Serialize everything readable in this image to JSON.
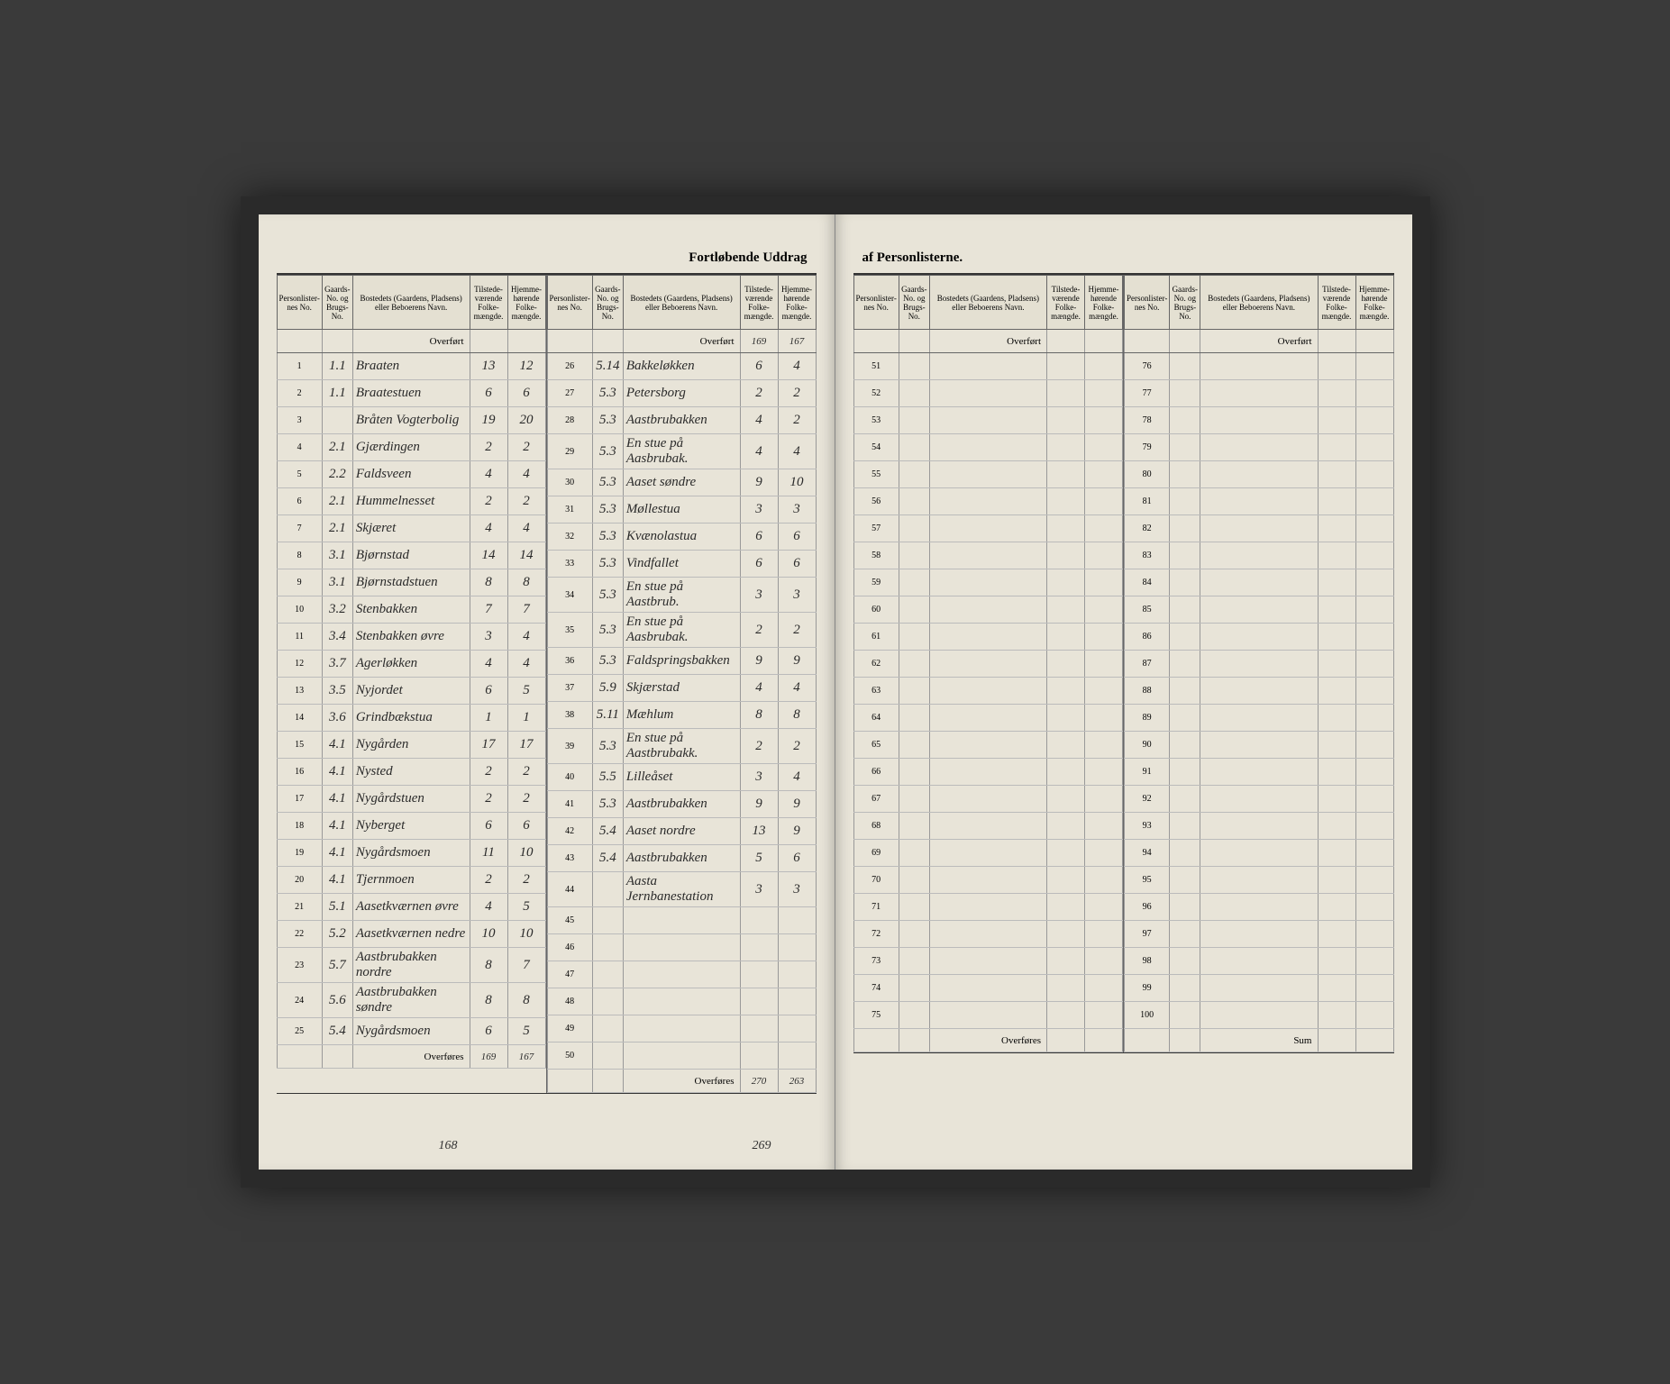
{
  "title_left": "Fortløbende Uddrag",
  "title_right": "af Personlisterne.",
  "headers": {
    "personliste": "Personlister-nes No.",
    "gaards": "Gaards-No. og Brugs-No.",
    "bosted": "Bostedets (Gaardens, Pladsens) eller Beboerens Navn.",
    "tilstede": "Tilstede-værende Folke-mængde.",
    "hjemme": "Hjemme-hørende Folke-mængde."
  },
  "overfort": "Overført",
  "overfores": "Overføres",
  "sum": "Sum",
  "overfort_vals_col2": {
    "t": "169",
    "h": "167"
  },
  "col1": [
    {
      "n": "1",
      "g": "1.1",
      "name": "Braaten",
      "t": "13",
      "h": "12"
    },
    {
      "n": "2",
      "g": "1.1",
      "name": "Braatestuen",
      "t": "6",
      "h": "6"
    },
    {
      "n": "3",
      "g": "",
      "name": "Bråten Vogterbolig",
      "t": "19",
      "h": "20"
    },
    {
      "n": "4",
      "g": "2.1",
      "name": "Gjærdingen",
      "t": "2",
      "h": "2"
    },
    {
      "n": "5",
      "g": "2.2",
      "name": "Faldsveen",
      "t": "4",
      "h": "4"
    },
    {
      "n": "6",
      "g": "2.1",
      "name": "Hummelnesset",
      "t": "2",
      "h": "2"
    },
    {
      "n": "7",
      "g": "2.1",
      "name": "Skjæret",
      "t": "4",
      "h": "4"
    },
    {
      "n": "8",
      "g": "3.1",
      "name": "Bjørnstad",
      "t": "14",
      "h": "14"
    },
    {
      "n": "9",
      "g": "3.1",
      "name": "Bjørnstadstuen",
      "t": "8",
      "h": "8"
    },
    {
      "n": "10",
      "g": "3.2",
      "name": "Stenbakken",
      "t": "7",
      "h": "7"
    },
    {
      "n": "11",
      "g": "3.4",
      "name": "Stenbakken øvre",
      "t": "3",
      "h": "4"
    },
    {
      "n": "12",
      "g": "3.7",
      "name": "Agerløkken",
      "t": "4",
      "h": "4"
    },
    {
      "n": "13",
      "g": "3.5",
      "name": "Nyjordet",
      "t": "6",
      "h": "5"
    },
    {
      "n": "14",
      "g": "3.6",
      "name": "Grindbækstua",
      "t": "1",
      "h": "1"
    },
    {
      "n": "15",
      "g": "4.1",
      "name": "Nygården",
      "t": "17",
      "h": "17"
    },
    {
      "n": "16",
      "g": "4.1",
      "name": "Nysted",
      "t": "2",
      "h": "2"
    },
    {
      "n": "17",
      "g": "4.1",
      "name": "Nygårdstuen",
      "t": "2",
      "h": "2"
    },
    {
      "n": "18",
      "g": "4.1",
      "name": "Nyberget",
      "t": "6",
      "h": "6"
    },
    {
      "n": "19",
      "g": "4.1",
      "name": "Nygårdsmoen",
      "t": "11",
      "h": "10"
    },
    {
      "n": "20",
      "g": "4.1",
      "name": "Tjernmoen",
      "t": "2",
      "h": "2"
    },
    {
      "n": "21",
      "g": "5.1",
      "name": "Aasetkværnen øvre",
      "t": "4",
      "h": "5"
    },
    {
      "n": "22",
      "g": "5.2",
      "name": "Aasetkværnen nedre",
      "t": "10",
      "h": "10"
    },
    {
      "n": "23",
      "g": "5.7",
      "name": "Aastbrubakken nordre",
      "t": "8",
      "h": "7"
    },
    {
      "n": "24",
      "g": "5.6",
      "name": "Aastbrubakken søndre",
      "t": "8",
      "h": "8"
    },
    {
      "n": "25",
      "g": "5.4",
      "name": "Nygårdsmoen",
      "t": "6",
      "h": "5"
    }
  ],
  "col1_sum": {
    "t": "169",
    "h": "167"
  },
  "col1_annot1": "168",
  "col2": [
    {
      "n": "26",
      "g": "5.14",
      "name": "Bakkeløkken",
      "t": "6",
      "h": "4"
    },
    {
      "n": "27",
      "g": "5.3",
      "name": "Petersborg",
      "t": "2",
      "h": "2"
    },
    {
      "n": "28",
      "g": "5.3",
      "name": "Aastbrubakken",
      "t": "4",
      "h": "2"
    },
    {
      "n": "29",
      "g": "5.3",
      "name": "En stue på Aasbrubak.",
      "t": "4",
      "h": "4"
    },
    {
      "n": "30",
      "g": "5.3",
      "name": "Aaset søndre",
      "t": "9",
      "h": "10"
    },
    {
      "n": "31",
      "g": "5.3",
      "name": "Møllestua",
      "t": "3",
      "h": "3"
    },
    {
      "n": "32",
      "g": "5.3",
      "name": "Kvænolastua",
      "t": "6",
      "h": "6"
    },
    {
      "n": "33",
      "g": "5.3",
      "name": "Vindfallet",
      "t": "6",
      "h": "6"
    },
    {
      "n": "34",
      "g": "5.3",
      "name": "En stue på Aastbrub.",
      "t": "3",
      "h": "3"
    },
    {
      "n": "35",
      "g": "5.3",
      "name": "En stue på Aasbrubak.",
      "t": "2",
      "h": "2"
    },
    {
      "n": "36",
      "g": "5.3",
      "name": "Faldspringsbakken",
      "t": "9",
      "h": "9"
    },
    {
      "n": "37",
      "g": "5.9",
      "name": "Skjærstad",
      "t": "4",
      "h": "4"
    },
    {
      "n": "38",
      "g": "5.11",
      "name": "Mæhlum",
      "t": "8",
      "h": "8"
    },
    {
      "n": "39",
      "g": "5.3",
      "name": "En stue på Aastbrubakk.",
      "t": "2",
      "h": "2"
    },
    {
      "n": "40",
      "g": "5.5",
      "name": "Lilleåset",
      "t": "3",
      "h": "4"
    },
    {
      "n": "41",
      "g": "5.3",
      "name": "Aastbrubakken",
      "t": "9",
      "h": "9"
    },
    {
      "n": "42",
      "g": "5.4",
      "name": "Aaset nordre",
      "t": "13",
      "h": "9"
    },
    {
      "n": "43",
      "g": "5.4",
      "name": "Aastbrubakken",
      "t": "5",
      "h": "6"
    },
    {
      "n": "44",
      "g": "",
      "name": "Aasta Jernbanestation",
      "t": "3",
      "h": "3"
    },
    {
      "n": "45",
      "g": "",
      "name": "",
      "t": "",
      "h": ""
    },
    {
      "n": "46",
      "g": "",
      "name": "",
      "t": "",
      "h": ""
    },
    {
      "n": "47",
      "g": "",
      "name": "",
      "t": "",
      "h": ""
    },
    {
      "n": "48",
      "g": "",
      "name": "",
      "t": "",
      "h": ""
    },
    {
      "n": "49",
      "g": "",
      "name": "",
      "t": "",
      "h": ""
    },
    {
      "n": "50",
      "g": "",
      "name": "",
      "t": "",
      "h": ""
    }
  ],
  "col2_sum": {
    "t": "270",
    "h": "263"
  },
  "col2_annot": "269",
  "col3": [
    {
      "n": "51"
    },
    {
      "n": "52"
    },
    {
      "n": "53"
    },
    {
      "n": "54"
    },
    {
      "n": "55"
    },
    {
      "n": "56"
    },
    {
      "n": "57"
    },
    {
      "n": "58"
    },
    {
      "n": "59"
    },
    {
      "n": "60"
    },
    {
      "n": "61"
    },
    {
      "n": "62"
    },
    {
      "n": "63"
    },
    {
      "n": "64"
    },
    {
      "n": "65"
    },
    {
      "n": "66"
    },
    {
      "n": "67"
    },
    {
      "n": "68"
    },
    {
      "n": "69"
    },
    {
      "n": "70"
    },
    {
      "n": "71"
    },
    {
      "n": "72"
    },
    {
      "n": "73"
    },
    {
      "n": "74"
    },
    {
      "n": "75"
    }
  ],
  "col4": [
    {
      "n": "76"
    },
    {
      "n": "77"
    },
    {
      "n": "78"
    },
    {
      "n": "79"
    },
    {
      "n": "80"
    },
    {
      "n": "81"
    },
    {
      "n": "82"
    },
    {
      "n": "83"
    },
    {
      "n": "84"
    },
    {
      "n": "85"
    },
    {
      "n": "86"
    },
    {
      "n": "87"
    },
    {
      "n": "88"
    },
    {
      "n": "89"
    },
    {
      "n": "90"
    },
    {
      "n": "91"
    },
    {
      "n": "92"
    },
    {
      "n": "93"
    },
    {
      "n": "94"
    },
    {
      "n": "95"
    },
    {
      "n": "96"
    },
    {
      "n": "97"
    },
    {
      "n": "98"
    },
    {
      "n": "99"
    },
    {
      "n": "100"
    }
  ]
}
